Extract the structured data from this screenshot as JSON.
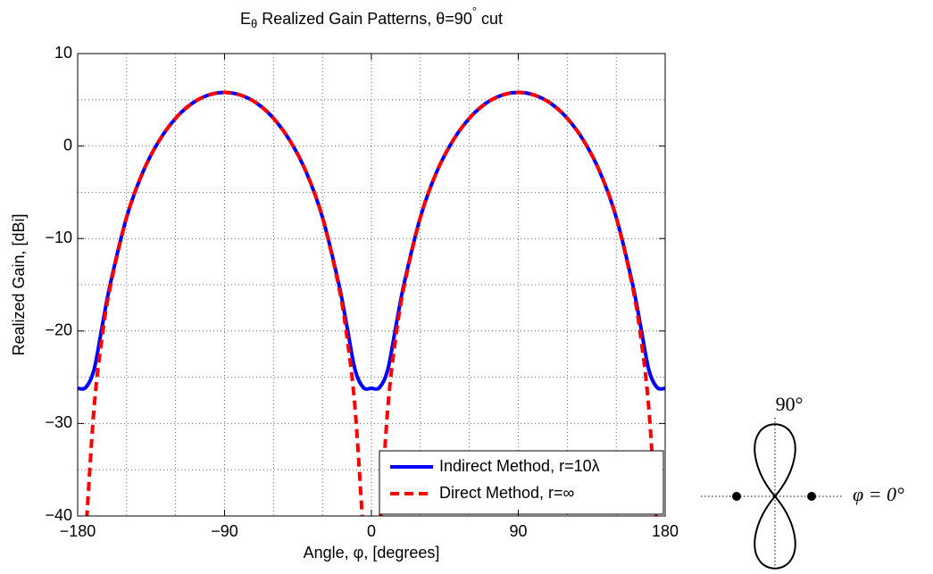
{
  "chart_data": {
    "type": "line",
    "title": [
      "E",
      "θ",
      " Realized Gain Patterns, θ=90",
      "°",
      " cut"
    ],
    "x_label": "Angle, φ, [degrees]",
    "y_label": "Realized Gain, [dBi]",
    "x": [
      -180,
      -175,
      -170,
      -165,
      -160,
      -150,
      -140,
      -130,
      -120,
      -110,
      -100,
      -90,
      -80,
      -70,
      -60,
      -50,
      -40,
      -30,
      -20,
      -15,
      -10,
      -5,
      0,
      5,
      10,
      15,
      20,
      30,
      40,
      50,
      60,
      70,
      80,
      90,
      100,
      110,
      120,
      130,
      140,
      150,
      160,
      165,
      170,
      175,
      180
    ],
    "series": [
      {
        "name": "Indirect Method, r=10λ",
        "color": "#0000ff",
        "dash": "solid",
        "values": [
          -26.2,
          -26.1,
          -24.2,
          -19.5,
          -14.9,
          -7.7,
          -2.8,
          0.6,
          3.0,
          4.6,
          5.5,
          5.8,
          5.5,
          4.6,
          3.0,
          0.6,
          -2.8,
          -7.7,
          -14.9,
          -19.5,
          -24.2,
          -26.1,
          -26.2,
          -26.1,
          -24.2,
          -19.5,
          -14.9,
          -7.7,
          -2.8,
          0.6,
          3.0,
          4.6,
          5.5,
          5.8,
          5.5,
          4.6,
          3.0,
          0.6,
          -2.8,
          -7.7,
          -14.9,
          -19.5,
          -24.2,
          -26.1,
          -26.2
        ]
      },
      {
        "name": "Direct Method, r=∞",
        "color": "#ff0000",
        "dash": "dashed",
        "values": [
          null,
          -41.9,
          -28.4,
          -20.6,
          -15.2,
          -7.7,
          -2.8,
          0.6,
          3.0,
          4.6,
          5.5,
          5.8,
          5.5,
          4.6,
          3.0,
          0.6,
          -2.8,
          -7.7,
          -15.2,
          -20.6,
          -28.4,
          -41.9,
          null,
          -41.9,
          -28.4,
          -20.6,
          -15.2,
          -7.7,
          -2.8,
          0.6,
          3.0,
          4.6,
          5.5,
          5.8,
          5.5,
          4.6,
          3.0,
          0.6,
          -2.8,
          -7.7,
          -15.2,
          -20.6,
          -28.4,
          -41.9,
          null
        ]
      }
    ],
    "xlim": [
      -180,
      180
    ],
    "xticks": [
      {
        "value": -180,
        "label": "−180"
      },
      {
        "value": -90,
        "label": "−90"
      },
      0,
      90,
      180
    ],
    "xminorticks": [
      -150,
      -120,
      -60,
      -30,
      30,
      60,
      120,
      150
    ],
    "ylim": [
      -40,
      10
    ],
    "yticks": [
      10,
      0,
      {
        "value": -10,
        "label": "−10"
      },
      {
        "value": -20,
        "label": "−20"
      },
      {
        "value": -30,
        "label": "−30"
      },
      {
        "value": -40,
        "label": "−40"
      }
    ],
    "yminorticks": [
      5,
      -5,
      -15,
      -25,
      -35
    ],
    "grid": true,
    "legend": "lower right"
  },
  "inset_diagram": {
    "top_label": "90°",
    "right_label": "φ = 0°"
  }
}
